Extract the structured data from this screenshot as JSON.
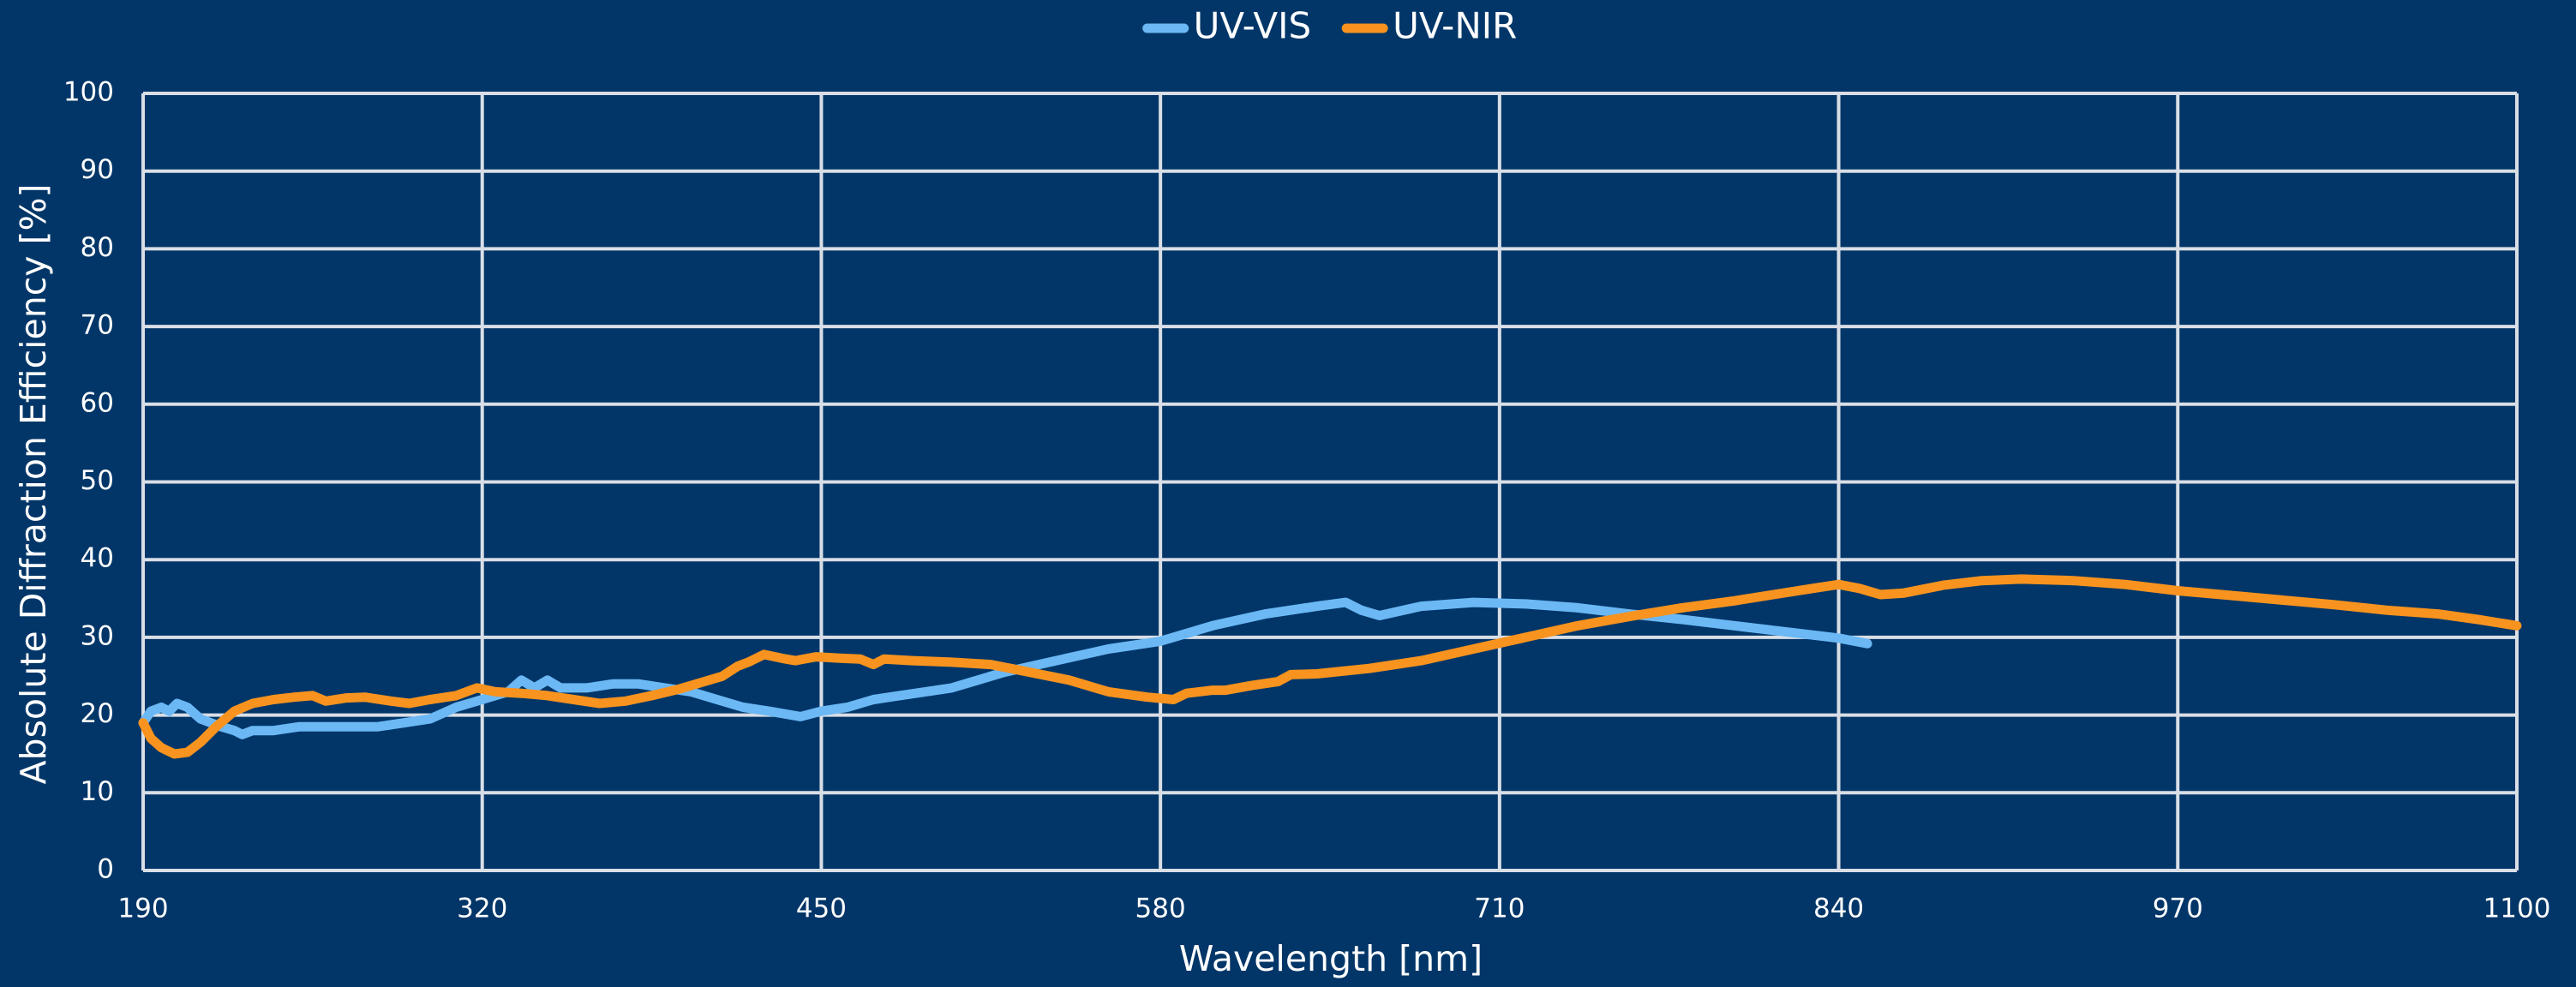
{
  "chart_data": {
    "type": "line",
    "x_label": "Wavelength [nm]",
    "y_label": "Absolute Diffraction Efficiency [%]",
    "xlim": [
      190,
      1100
    ],
    "xticks": [
      190,
      320,
      450,
      580,
      710,
      840,
      970,
      1100
    ],
    "ylim": [
      0,
      100
    ],
    "yticks": [
      0,
      10,
      20,
      30,
      40,
      50,
      60,
      70,
      80,
      90,
      100
    ],
    "grid": true,
    "legend": "top",
    "series": [
      {
        "name": "UV-VIS",
        "color": "#6bb8f5",
        "x": [
          190,
          193,
          197,
          200,
          203,
          207,
          212,
          220,
          225,
          228,
          232,
          240,
          250,
          260,
          270,
          280,
          290,
          300,
          310,
          320,
          330,
          335,
          340,
          345,
          350,
          360,
          370,
          380,
          390,
          400,
          410,
          420,
          430,
          442,
          450,
          460,
          470,
          480,
          490,
          500,
          510,
          520,
          540,
          560,
          580,
          600,
          620,
          640,
          651,
          657,
          664,
          680,
          700,
          720,
          740,
          760,
          780,
          800,
          820,
          840,
          851
        ],
        "values": [
          19,
          20.5,
          21,
          20.5,
          21.5,
          21,
          19.5,
          18.5,
          18,
          17.5,
          18,
          18,
          18.5,
          18.5,
          18.5,
          18.5,
          19,
          19.5,
          21,
          22,
          23,
          24.5,
          23.5,
          24.5,
          23.5,
          23.5,
          24,
          24,
          23.5,
          23,
          22,
          21,
          20.5,
          19.8,
          20.5,
          21,
          22,
          22.5,
          23,
          23.5,
          24.5,
          25.5,
          27,
          28.5,
          29.5,
          31.5,
          33,
          34,
          34.5,
          33.5,
          32.8,
          34,
          34.5,
          34.3,
          33.8,
          33,
          32.3,
          31.5,
          30.7,
          29.9,
          29.2
        ]
      },
      {
        "name": "UV-NIR",
        "color": "#f7931e",
        "x": [
          190,
          193,
          197,
          202,
          207,
          212,
          218,
          225,
          232,
          240,
          248,
          255,
          260,
          268,
          275,
          285,
          292,
          300,
          310,
          318,
          325,
          335,
          345,
          355,
          365,
          375,
          385,
          395,
          405,
          412,
          418,
          422,
          428,
          435,
          440,
          448,
          458,
          465,
          470,
          474,
          485,
          500,
          515,
          530,
          545,
          560,
          575,
          585,
          590,
          600,
          605,
          615,
          625,
          630,
          640,
          660,
          680,
          700,
          720,
          740,
          760,
          780,
          800,
          815,
          830,
          840,
          848,
          856,
          865,
          880,
          895,
          910,
          930,
          950,
          970,
          990,
          1010,
          1030,
          1050,
          1070,
          1085,
          1100
        ],
        "values": [
          19,
          17,
          15.8,
          15,
          15.2,
          16.5,
          18.5,
          20.5,
          21.5,
          22,
          22.3,
          22.5,
          21.8,
          22.2,
          22.3,
          21.8,
          21.5,
          22,
          22.5,
          23.5,
          23,
          22.8,
          22.5,
          22,
          21.5,
          21.8,
          22.5,
          23.3,
          24.3,
          25,
          26.3,
          26.8,
          27.8,
          27.3,
          27,
          27.5,
          27.3,
          27.2,
          26.5,
          27.2,
          27,
          26.8,
          26.5,
          25.5,
          24.5,
          23,
          22.3,
          22,
          22.8,
          23.2,
          23.2,
          23.8,
          24.3,
          25.2,
          25.3,
          26,
          27,
          28.5,
          30,
          31.5,
          32.7,
          33.8,
          34.7,
          35.5,
          36.3,
          36.8,
          36.3,
          35.5,
          35.7,
          36.7,
          37.3,
          37.5,
          37.3,
          36.8,
          36,
          35.4,
          34.8,
          34.2,
          33.5,
          33,
          32.3,
          31.5
        ]
      }
    ]
  }
}
